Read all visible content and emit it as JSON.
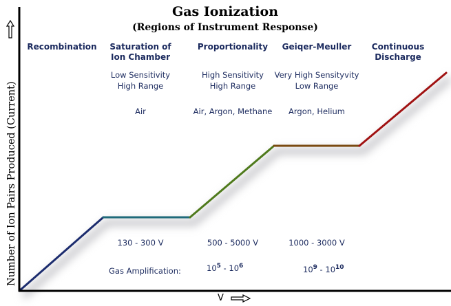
{
  "title": "Gas Ionization",
  "subtitle": "(Regions of Instrument Response)",
  "y_axis_label": "Number of Ion Pairs Produced  (Current)",
  "x_axis_label": "V",
  "regions": [
    {
      "name": "Recombination",
      "name2": "",
      "desc1": "",
      "desc2": "",
      "gas": "",
      "voltage": "",
      "color": "#1c2c6e"
    },
    {
      "name": "Saturation of",
      "name2": "Ion Chamber",
      "desc1": "Low Sensitivity",
      "desc2": "High Range",
      "gas": "Air",
      "voltage": "130 - 300 V",
      "color": "#1f6a7a"
    },
    {
      "name": "Proportionality",
      "name2": "",
      "desc1": "High Sensitivity",
      "desc2": "High Range",
      "gas": "Air, Argon, Methane",
      "voltage": "500 - 5000 V",
      "color": "#4f7a1c"
    },
    {
      "name": "Geiqer-Meuller",
      "name2": "",
      "desc1": "Very High Sensityvity",
      "desc2": "Low Range",
      "gas": "Argon, Helium",
      "voltage": "1000 - 3000 V",
      "color": "#7a4a10"
    },
    {
      "name": "Continuous",
      "name2": "Discharge",
      "desc1": "",
      "desc2": "",
      "gas": "",
      "voltage": "",
      "color": "#a01212"
    }
  ],
  "gas_amplification": {
    "label": "Gas Amplification:",
    "proportional": {
      "base1": "10",
      "exp1": "5",
      "sep": " - ",
      "base2": "10",
      "exp2": "6"
    },
    "geiger": {
      "base1": "10",
      "exp1": "9",
      "sep": " - ",
      "base2": "10",
      "exp2": "10"
    }
  }
}
